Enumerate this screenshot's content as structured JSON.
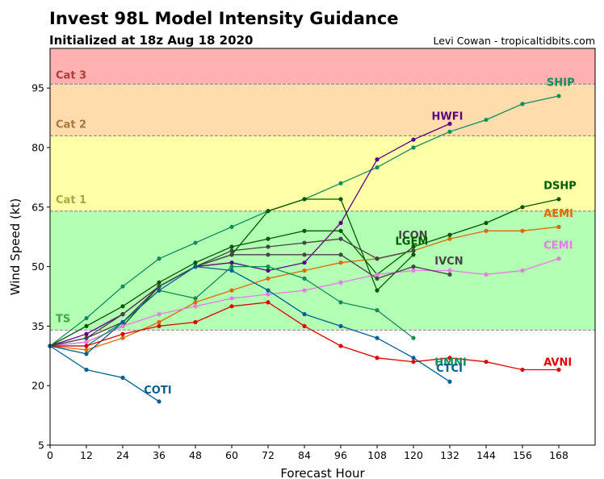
{
  "chart_data": {
    "type": "line",
    "title": "Invest 98L Model Intensity Guidance",
    "subtitle": "Initialized at 18z Aug 18 2020",
    "credit": "Levi Cowan - tropicaltidbits.com",
    "xlabel": "Forecast Hour",
    "ylabel": "Wind Speed (kt)",
    "xlim": [
      0,
      180
    ],
    "ylim": [
      5,
      105
    ],
    "xticks": [
      0,
      12,
      24,
      36,
      48,
      60,
      72,
      84,
      96,
      108,
      120,
      132,
      144,
      156,
      168
    ],
    "yticks": [
      5,
      20,
      35,
      50,
      65,
      80,
      95
    ],
    "grid": false,
    "bands": [
      {
        "label": "TS",
        "from": 34,
        "to": 64,
        "color": "#b3ffb3",
        "text_color": "#3fa83f"
      },
      {
        "label": "Cat 1",
        "from": 64,
        "to": 83,
        "color": "#ffffa8",
        "text_color": "#a8a83c"
      },
      {
        "label": "Cat 2",
        "from": 83,
        "to": 96,
        "color": "#ffdcac",
        "text_color": "#a8783c"
      },
      {
        "label": "Cat 3",
        "from": 96,
        "to": 105,
        "color": "#ffb0b0",
        "text_color": "#b03c3c"
      }
    ],
    "series": [
      {
        "name": "SHIP",
        "color": "#108e5a",
        "label_at": [
          164,
          95.5
        ],
        "points": [
          [
            0,
            30
          ],
          [
            12,
            37
          ],
          [
            24,
            45
          ],
          [
            36,
            52
          ],
          [
            48,
            56
          ],
          [
            60,
            60
          ],
          [
            72,
            64
          ],
          [
            84,
            67
          ],
          [
            96,
            71
          ],
          [
            108,
            75
          ],
          [
            120,
            80
          ],
          [
            132,
            84
          ],
          [
            144,
            87
          ],
          [
            156,
            91
          ],
          [
            168,
            93
          ]
        ]
      },
      {
        "name": "HWFI",
        "color": "#5a0080",
        "label_at": [
          126,
          87
        ],
        "points": [
          [
            0,
            30
          ],
          [
            12,
            33
          ],
          [
            24,
            38
          ],
          [
            36,
            45
          ],
          [
            48,
            50
          ],
          [
            60,
            51
          ],
          [
            72,
            49
          ],
          [
            84,
            51
          ],
          [
            96,
            61
          ],
          [
            108,
            77
          ],
          [
            120,
            82
          ],
          [
            132,
            86
          ]
        ]
      },
      {
        "name": "DSHP",
        "color": "#005a00",
        "label_at": [
          163,
          69.5
        ],
        "points": [
          [
            0,
            30
          ],
          [
            12,
            35
          ],
          [
            24,
            40
          ],
          [
            36,
            46
          ],
          [
            48,
            51
          ],
          [
            60,
            55
          ],
          [
            72,
            57
          ],
          [
            84,
            59
          ],
          [
            96,
            59
          ],
          [
            108,
            48
          ],
          [
            120,
            55
          ],
          [
            132,
            58
          ],
          [
            144,
            61
          ],
          [
            156,
            65
          ],
          [
            168,
            67
          ]
        ]
      },
      {
        "name": "AEMI",
        "color": "#e06800",
        "label_at": [
          163,
          62.5
        ],
        "points": [
          [
            0,
            30
          ],
          [
            12,
            29
          ],
          [
            24,
            32
          ],
          [
            36,
            36
          ],
          [
            48,
            41
          ],
          [
            60,
            44
          ],
          [
            72,
            47
          ],
          [
            84,
            49
          ],
          [
            96,
            51
          ],
          [
            108,
            52
          ],
          [
            120,
            54
          ],
          [
            132,
            57
          ],
          [
            144,
            59
          ],
          [
            156,
            59
          ],
          [
            168,
            60
          ]
        ]
      },
      {
        "name": "ICON",
        "color": "#454545",
        "label_at": [
          115,
          57
        ],
        "points": [
          [
            0,
            30
          ],
          [
            12,
            32
          ],
          [
            24,
            38
          ],
          [
            36,
            45
          ],
          [
            48,
            50
          ],
          [
            60,
            54
          ],
          [
            72,
            55
          ],
          [
            84,
            56
          ],
          [
            96,
            57
          ],
          [
            108,
            52
          ],
          [
            120,
            54
          ]
        ]
      },
      {
        "name": "LGEM",
        "color": "#005a00",
        "label_at": [
          114,
          55.5
        ],
        "points": [
          [
            0,
            30
          ],
          [
            12,
            31
          ],
          [
            24,
            35
          ],
          [
            36,
            45
          ],
          [
            48,
            50
          ],
          [
            60,
            53
          ],
          [
            72,
            64
          ],
          [
            84,
            67
          ],
          [
            96,
            67
          ],
          [
            108,
            44
          ],
          [
            120,
            53
          ]
        ]
      },
      {
        "name": "CEMI",
        "color": "#e87ae8",
        "label_at": [
          163,
          54.5
        ],
        "points": [
          [
            0,
            30
          ],
          [
            12,
            31
          ],
          [
            24,
            35
          ],
          [
            36,
            38
          ],
          [
            48,
            40
          ],
          [
            60,
            42
          ],
          [
            72,
            43
          ],
          [
            84,
            44
          ],
          [
            96,
            46
          ],
          [
            108,
            48
          ],
          [
            120,
            49
          ],
          [
            132,
            49
          ],
          [
            144,
            48
          ],
          [
            156,
            49
          ],
          [
            168,
            52
          ]
        ]
      },
      {
        "name": "IVCN",
        "color": "#454545",
        "label_at": [
          127,
          50.5
        ],
        "points": [
          [
            0,
            30
          ],
          [
            12,
            32
          ],
          [
            24,
            36
          ],
          [
            36,
            45
          ],
          [
            48,
            50
          ],
          [
            60,
            53
          ],
          [
            72,
            53
          ],
          [
            84,
            53
          ],
          [
            96,
            53
          ],
          [
            108,
            47
          ],
          [
            120,
            50
          ],
          [
            132,
            48
          ]
        ]
      },
      {
        "name": "HMNI",
        "color": "#108e5a",
        "label_at": [
          127,
          25
        ],
        "points": [
          [
            0,
            30
          ],
          [
            12,
            30
          ],
          [
            24,
            36
          ],
          [
            36,
            44
          ],
          [
            48,
            42
          ],
          [
            60,
            50
          ],
          [
            72,
            50
          ],
          [
            84,
            47
          ],
          [
            96,
            41
          ],
          [
            108,
            39
          ],
          [
            120,
            32
          ]
        ]
      },
      {
        "name": "CTCI",
        "color": "#006090",
        "label_at": [
          127.5,
          23.5
        ],
        "points": [
          [
            0,
            30
          ],
          [
            12,
            28
          ],
          [
            24,
            36
          ],
          [
            36,
            44
          ],
          [
            48,
            50
          ],
          [
            60,
            49
          ],
          [
            72,
            44
          ],
          [
            84,
            38
          ],
          [
            96,
            35
          ],
          [
            108,
            32
          ],
          [
            120,
            27
          ],
          [
            132,
            21
          ]
        ]
      },
      {
        "name": "AVNI",
        "color": "#e00000",
        "label_at": [
          163,
          25
        ],
        "points": [
          [
            0,
            30
          ],
          [
            12,
            30
          ],
          [
            24,
            33
          ],
          [
            36,
            35
          ],
          [
            48,
            36
          ],
          [
            60,
            40
          ],
          [
            72,
            41
          ],
          [
            84,
            35
          ],
          [
            96,
            30
          ],
          [
            108,
            27
          ],
          [
            120,
            26
          ],
          [
            132,
            27
          ],
          [
            144,
            26
          ],
          [
            156,
            24
          ],
          [
            168,
            24
          ]
        ]
      },
      {
        "name": "COTI",
        "color": "#006090",
        "label_at": [
          31,
          18
        ],
        "points": [
          [
            0,
            30
          ],
          [
            12,
            24
          ],
          [
            24,
            22
          ],
          [
            36,
            16
          ]
        ]
      }
    ]
  }
}
